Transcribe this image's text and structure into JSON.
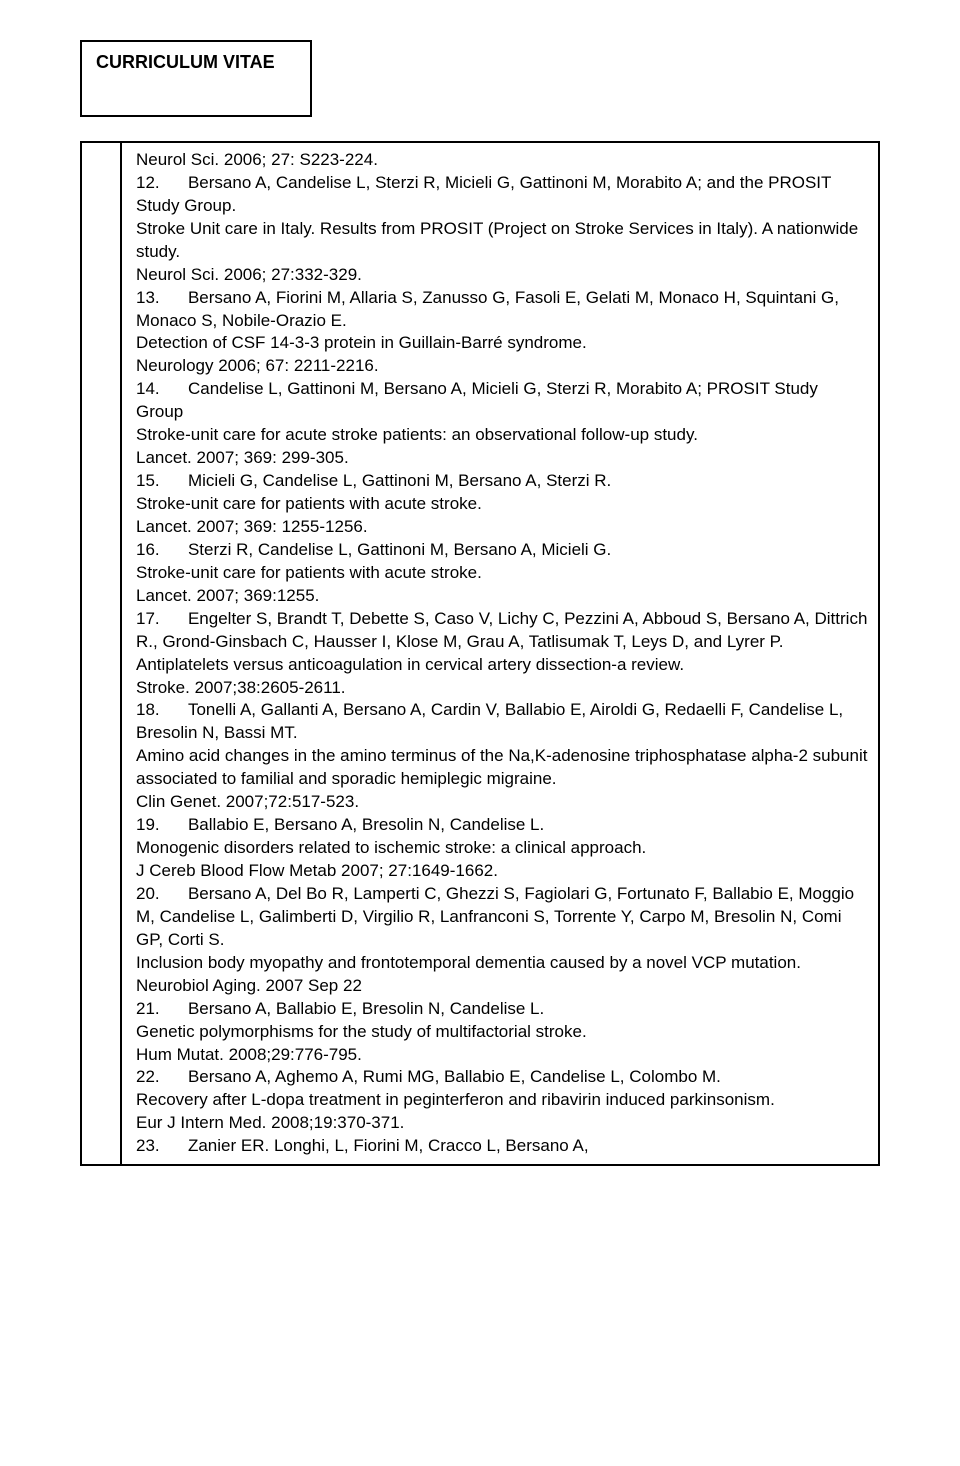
{
  "title": "CURRICULUM VITAE",
  "font_size": 17,
  "font_family": "Arial",
  "colors": {
    "text": "#000000",
    "background": "#ffffff",
    "border": "#000000"
  },
  "entries": [
    "Neurol Sci. 2006; 27: S223-224.",
    "12.      Bersano A, Candelise L, Sterzi R, Micieli G, Gattinoni M, Morabito A; and the PROSIT Study Group.",
    "Stroke Unit care in Italy. Results from PROSIT (Project on Stroke Services in Italy). A nationwide study.",
    "Neurol Sci. 2006; 27:332-329.",
    "13.      Bersano A, Fiorini M, Allaria S, Zanusso G, Fasoli E, Gelati M, Monaco H, Squintani G, Monaco S, Nobile-Orazio E.",
    "Detection of CSF 14-3-3 protein in Guillain-Barré syndrome.",
    "Neurology 2006; 67: 2211-2216.",
    "14.      Candelise L, Gattinoni M, Bersano A, Micieli G, Sterzi R, Morabito A; PROSIT Study Group",
    "Stroke-unit care for acute stroke patients: an observational follow-up study.",
    "Lancet. 2007; 369: 299-305.",
    "15.      Micieli G, Candelise L, Gattinoni M, Bersano A, Sterzi R.",
    "Stroke-unit care for patients with acute stroke.",
    "Lancet. 2007; 369: 1255-1256.",
    "16.      Sterzi R, Candelise L, Gattinoni M, Bersano A, Micieli G.",
    "Stroke-unit care for patients with acute stroke.",
    "Lancet. 2007; 369:1255.",
    "17.      Engelter S, Brandt T, Debette S, Caso V, Lichy C, Pezzini A, Abboud S, Bersano A, Dittrich R., Grond-Ginsbach C, Hausser I, Klose M, Grau A, Tatlisumak T, Leys D, and Lyrer P.",
    "Antiplatelets versus anticoagulation in cervical artery dissection-a review.",
    "Stroke. 2007;38:2605-2611.",
    "18.      Tonelli A, Gallanti A, Bersano A, Cardin V, Ballabio E, Airoldi G, Redaelli F, Candelise L, Bresolin N, Bassi MT.",
    "Amino acid changes in the amino terminus of the Na,K-adenosine triphosphatase alpha-2 subunit associated to familial and sporadic hemiplegic migraine.",
    "Clin Genet. 2007;72:517-523.",
    "19.      Ballabio E, Bersano A, Bresolin N, Candelise L.",
    "Monogenic disorders related to ischemic stroke: a clinical approach.",
    "J Cereb Blood Flow Metab  2007; 27:1649-1662.",
    "20.      Bersano A, Del Bo R, Lamperti C, Ghezzi S, Fagiolari G, Fortunato F, Ballabio E, Moggio M, Candelise L, Galimberti D, Virgilio R, Lanfranconi S, Torrente Y, Carpo M, Bresolin N, Comi GP, Corti S.",
    "Inclusion body myopathy and frontotemporal dementia caused by a novel VCP mutation.",
    "Neurobiol Aging. 2007 Sep 22",
    "21.      Bersano A, Ballabio E, Bresolin N, Candelise L.",
    "Genetic polymorphisms for the study of multifactorial stroke.",
    "Hum Mutat. 2008;29:776-795.",
    "22.      Bersano A, Aghemo A, Rumi MG,  Ballabio E, Candelise L, Colombo M.",
    "Recovery after L-dopa treatment in peginterferon and ribavirin induced parkinsonism.",
    "Eur J Intern Med. 2008;19:370-371.",
    "23.      Zanier ER. Longhi, L, Fiorini M,  Cracco L,  Bersano A,"
  ]
}
